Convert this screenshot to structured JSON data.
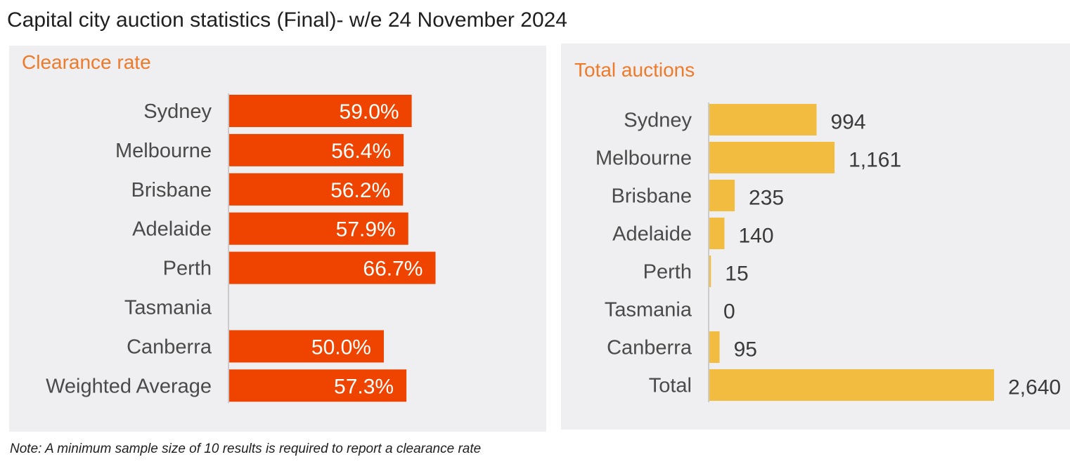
{
  "page": {
    "title": "Capital city auction statistics (Final)- w/e 24 November 2024",
    "note": "Note: A minimum sample size of 10 results is required to report a clearance rate"
  },
  "colors": {
    "clearance_bar": "#ee4400",
    "auctions_bar": "#f2bc40",
    "panel_title": "#ee7a2a",
    "category_text": "#4a4a4a",
    "value_text_dark": "#3a3a3a",
    "value_text_light": "#ffffff",
    "axis": "#bfbfbf"
  },
  "chart_data": [
    {
      "type": "bar",
      "orientation": "horizontal",
      "title": "Clearance rate",
      "categories": [
        "Sydney",
        "Melbourne",
        "Brisbane",
        "Adelaide",
        "Perth",
        "Tasmania",
        "Canberra",
        "Weighted Average"
      ],
      "values": [
        59.0,
        56.4,
        56.2,
        57.9,
        66.7,
        null,
        50.0,
        57.3
      ],
      "labels": [
        "59.0%",
        "56.4%",
        "56.2%",
        "57.9%",
        "66.7%",
        "",
        "50.0%",
        "57.3%"
      ],
      "unit": "%",
      "xlim": [
        0,
        100
      ],
      "grid": false,
      "legend": "none"
    },
    {
      "type": "bar",
      "orientation": "horizontal",
      "title": "Total auctions",
      "categories": [
        "Sydney",
        "Melbourne",
        "Brisbane",
        "Adelaide",
        "Perth",
        "Tasmania",
        "Canberra",
        "Total"
      ],
      "values": [
        994,
        1161,
        235,
        140,
        15,
        0,
        95,
        2640
      ],
      "labels": [
        "994",
        "1,161",
        "235",
        "140",
        "15",
        "0",
        "95",
        "2,640"
      ],
      "xlim": [
        0,
        2640
      ],
      "grid": false,
      "legend": "none"
    }
  ]
}
